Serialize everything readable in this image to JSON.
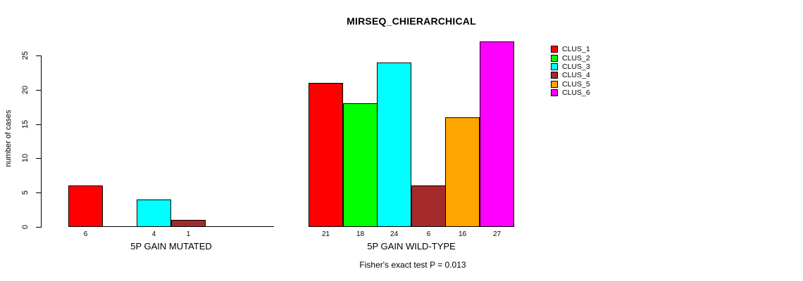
{
  "chart_data": {
    "type": "bar",
    "title": "MIRSEQ_CHIERARCHICAL",
    "ylabel": "number of cases",
    "ylim": [
      0,
      27
    ],
    "yticks": [
      0,
      5,
      10,
      15,
      20,
      25
    ],
    "grid": false,
    "legend_position": "right",
    "axis_color": "#000000",
    "series": [
      {
        "name": "CLUS_1",
        "color": "#FF0000"
      },
      {
        "name": "CLUS_2",
        "color": "#00FF00"
      },
      {
        "name": "CLUS_3",
        "color": "#00FFFF"
      },
      {
        "name": "CLUS_4",
        "color": "#A52A2A"
      },
      {
        "name": "CLUS_5",
        "color": "#FFA500"
      },
      {
        "name": "CLUS_6",
        "color": "#FF00FF"
      }
    ],
    "groups": [
      {
        "label": "5P GAIN MUTATED",
        "values": [
          6,
          0,
          4,
          1,
          0,
          0
        ],
        "bar_labels": [
          "6",
          "",
          "4",
          "1",
          "",
          ""
        ]
      },
      {
        "label": "5P GAIN WILD-TYPE",
        "values": [
          21,
          18,
          24,
          6,
          16,
          27
        ],
        "bar_labels": [
          "21",
          "18",
          "24",
          "6",
          "16",
          "27"
        ]
      }
    ],
    "footnote": "Fisher's exact test P = 0.013"
  }
}
